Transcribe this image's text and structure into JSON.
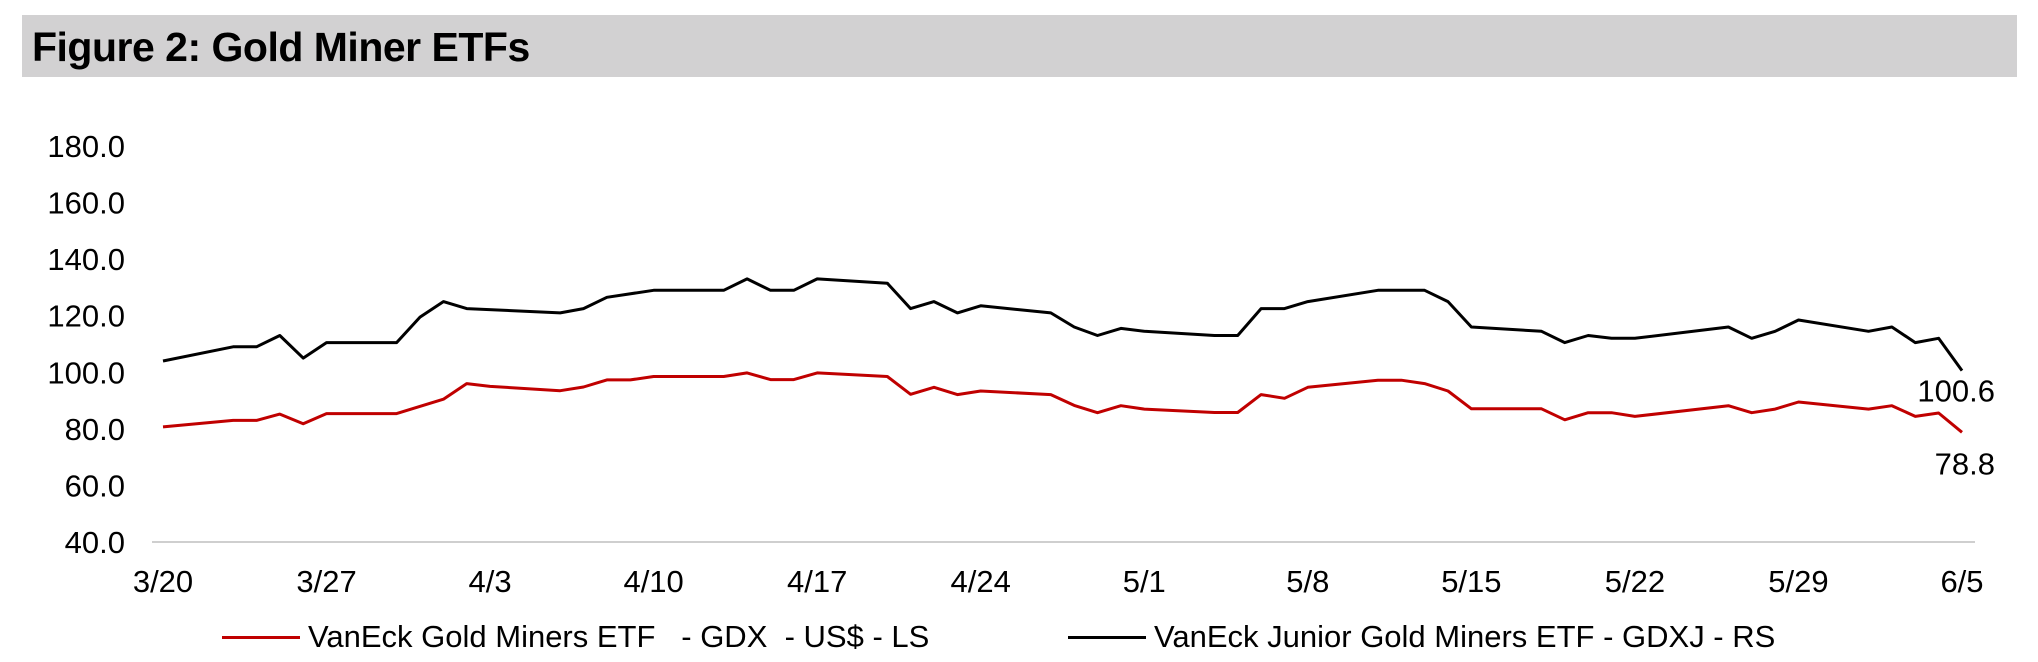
{
  "title": "Figure 2: Gold Miner ETFs",
  "chart_data": {
    "type": "line",
    "title": "Figure 2: Gold Miner ETFs",
    "xlabel": "",
    "ylabel": "",
    "ylim": [
      40,
      180
    ],
    "yticks": [
      "180.0",
      "160.0",
      "140.0",
      "120.0",
      "100.0",
      "80.0",
      "60.0",
      "40.0"
    ],
    "yticks_values": [
      180,
      160,
      140,
      120,
      100,
      80,
      60,
      40
    ],
    "x_tick_labels": [
      "3/20",
      "3/27",
      "4/3",
      "4/10",
      "4/17",
      "4/24",
      "5/1",
      "5/8",
      "5/15",
      "5/22",
      "5/29",
      "6/5"
    ],
    "x_tick_positions": [
      0,
      7,
      14,
      21,
      28,
      35,
      42,
      49,
      56,
      63,
      70,
      77
    ],
    "grid": false,
    "legend_position": "bottom",
    "series": [
      {
        "name": "VanEck Gold Miners ETF   - GDX  - US$ - LS",
        "color": "#c00000",
        "end_label": "78.8",
        "points": [
          [
            0,
            80.7
          ],
          [
            3,
            83
          ],
          [
            4,
            83
          ],
          [
            5,
            85.2
          ],
          [
            6,
            81.8
          ],
          [
            7,
            85.4
          ],
          [
            10,
            85.4
          ],
          [
            12,
            90.5
          ],
          [
            13,
            96
          ],
          [
            14,
            95
          ],
          [
            17,
            93.5
          ],
          [
            18,
            94.8
          ],
          [
            19,
            97.3
          ],
          [
            20,
            97.3
          ],
          [
            21,
            98.5
          ],
          [
            24,
            98.5
          ],
          [
            25,
            99.8
          ],
          [
            26,
            97.4
          ],
          [
            27,
            97.4
          ],
          [
            28,
            99.8
          ],
          [
            31,
            98.5
          ],
          [
            32,
            92.2
          ],
          [
            33,
            94.7
          ],
          [
            34,
            92.1
          ],
          [
            35,
            93.4
          ],
          [
            38,
            92.1
          ],
          [
            39,
            88.3
          ],
          [
            40,
            85.7
          ],
          [
            41,
            88.2
          ],
          [
            42,
            87
          ],
          [
            45,
            85.8
          ],
          [
            46,
            85.8
          ],
          [
            47,
            92.1
          ],
          [
            48,
            90.8
          ],
          [
            49,
            94.7
          ],
          [
            52,
            97.2
          ],
          [
            53,
            97.2
          ],
          [
            54,
            96
          ],
          [
            55,
            93.4
          ],
          [
            56,
            87.1
          ],
          [
            59,
            87.1
          ],
          [
            60,
            83.2
          ],
          [
            61,
            85.7
          ],
          [
            62,
            85.7
          ],
          [
            63,
            84.4
          ],
          [
            67,
            88.2
          ],
          [
            68,
            85.7
          ],
          [
            69,
            87
          ],
          [
            70,
            89.5
          ],
          [
            73,
            87
          ],
          [
            74,
            88.2
          ],
          [
            75,
            84.4
          ],
          [
            76,
            85.6
          ],
          [
            77,
            78.8
          ]
        ]
      },
      {
        "name": "VanEck Junior Gold Miners ETF - GDXJ - RS",
        "color": "#000000",
        "end_label": "100.6",
        "points": [
          [
            0,
            104
          ],
          [
            3,
            109
          ],
          [
            4,
            109
          ],
          [
            5,
            113
          ],
          [
            6,
            105
          ],
          [
            7,
            110.5
          ],
          [
            10,
            110.5
          ],
          [
            11,
            119.5
          ],
          [
            12,
            125
          ],
          [
            13,
            122.5
          ],
          [
            17,
            121
          ],
          [
            18,
            122.5
          ],
          [
            19,
            126.5
          ],
          [
            21,
            129
          ],
          [
            24,
            129
          ],
          [
            25,
            133
          ],
          [
            26,
            129
          ],
          [
            27,
            129
          ],
          [
            28,
            133
          ],
          [
            31,
            131.5
          ],
          [
            32,
            122.5
          ],
          [
            33,
            125
          ],
          [
            34,
            121
          ],
          [
            35,
            123.5
          ],
          [
            38,
            121
          ],
          [
            39,
            116
          ],
          [
            40,
            113
          ],
          [
            41,
            115.5
          ],
          [
            42,
            114.5
          ],
          [
            45,
            113
          ],
          [
            46,
            113
          ],
          [
            47,
            122.5
          ],
          [
            48,
            122.5
          ],
          [
            49,
            125
          ],
          [
            52,
            129
          ],
          [
            54,
            129
          ],
          [
            55,
            125
          ],
          [
            56,
            116
          ],
          [
            59,
            114.5
          ],
          [
            60,
            110.5
          ],
          [
            61,
            113
          ],
          [
            62,
            112
          ],
          [
            63,
            112
          ],
          [
            67,
            116
          ],
          [
            68,
            112
          ],
          [
            69,
            114.5
          ],
          [
            70,
            118.5
          ],
          [
            73,
            114.5
          ],
          [
            74,
            116
          ],
          [
            75,
            110.5
          ],
          [
            76,
            112
          ],
          [
            77,
            100.6
          ]
        ]
      }
    ]
  }
}
